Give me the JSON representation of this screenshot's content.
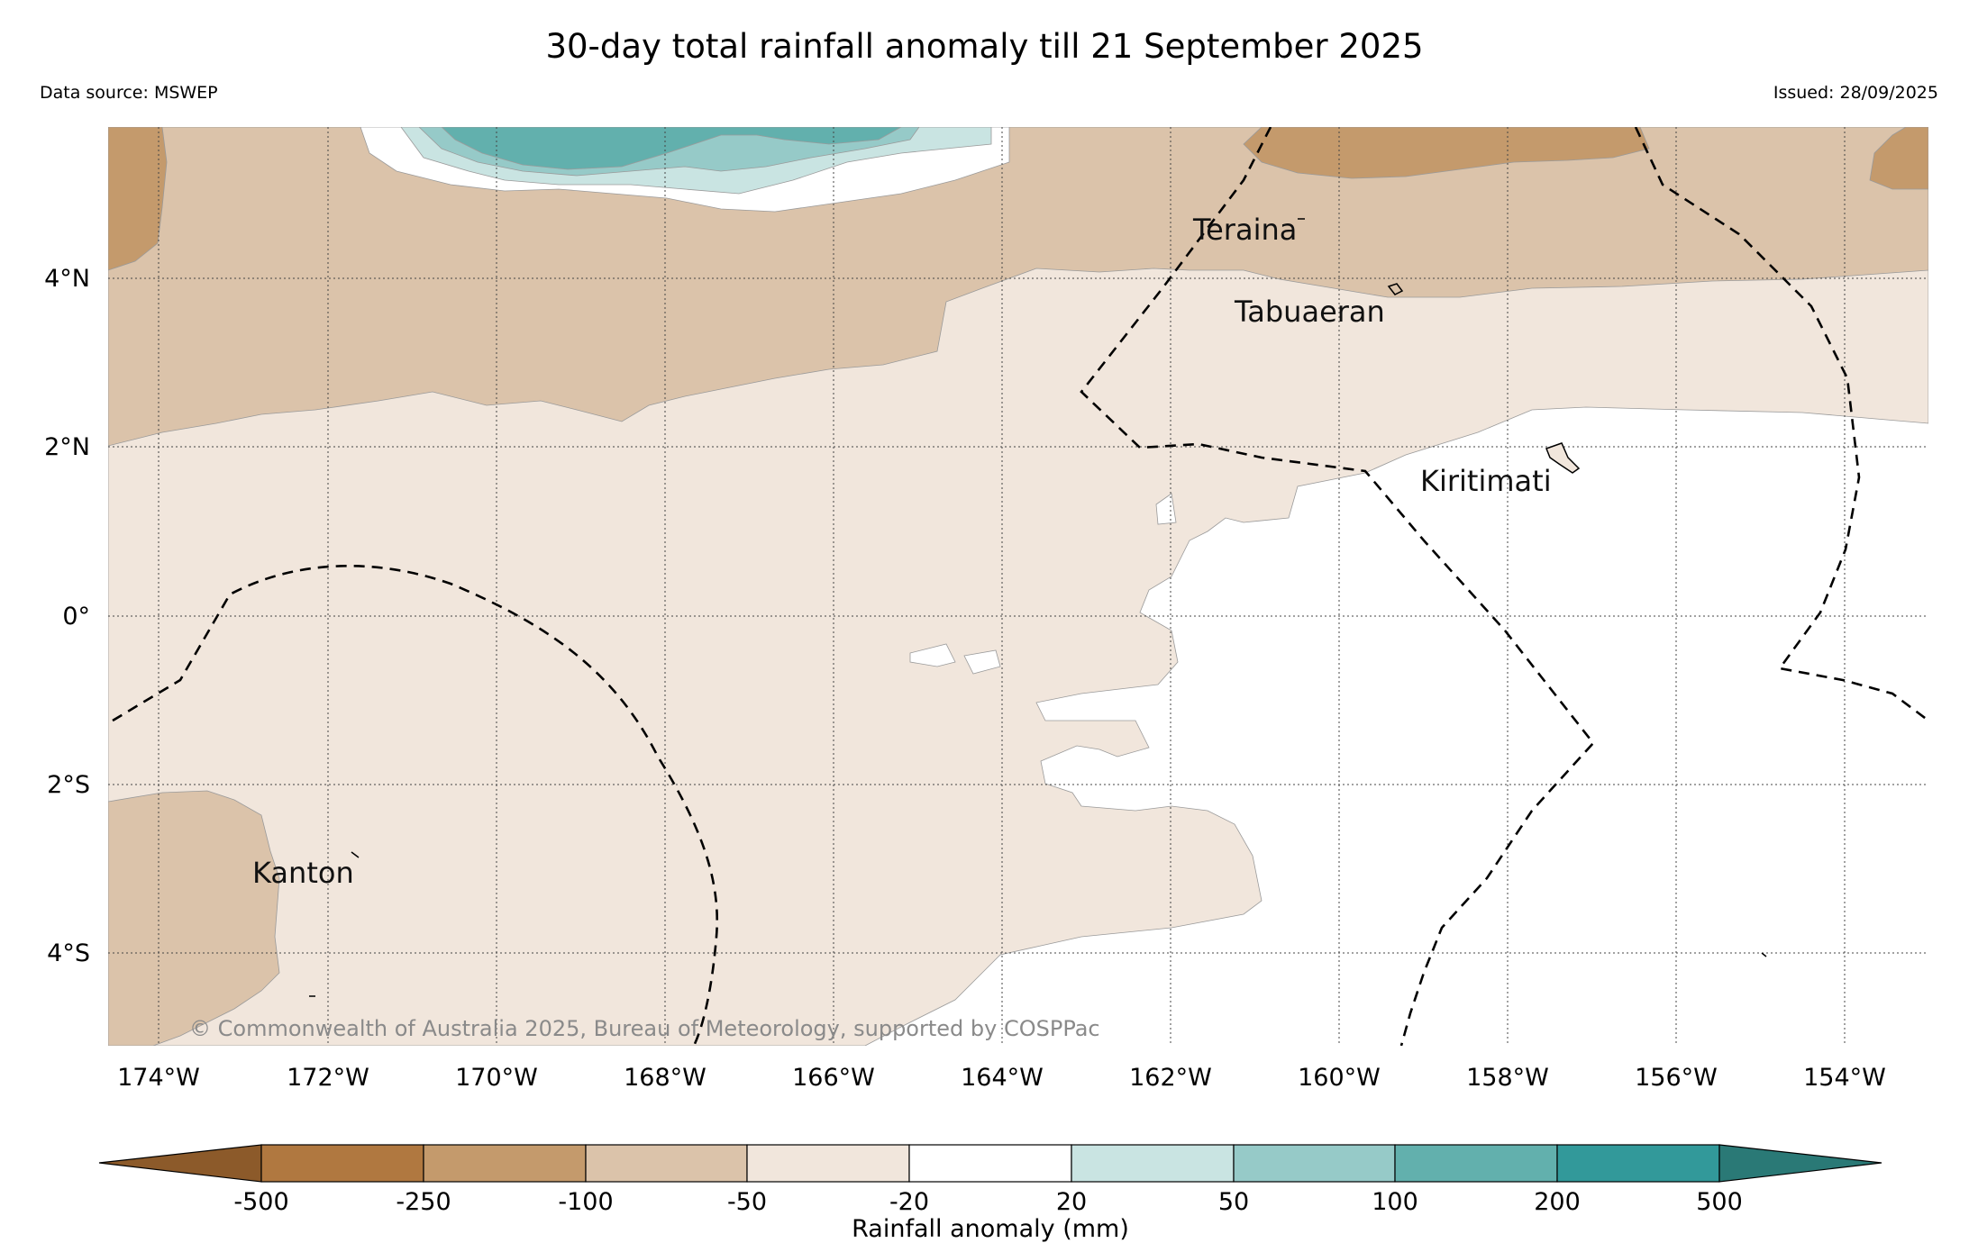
{
  "title": "30-day total rainfall anomaly till 21 September 2025",
  "data_source": "Data source: MSWEP",
  "issued": "Issued: 28/09/2025",
  "copyright": "© Commonwealth of Australia 2025, Bureau of Meteorology, supported by COSPPac",
  "map": {
    "lon_range": [
      -174.6,
      -152.9
    ],
    "lat_range": [
      -5.1,
      5.8
    ],
    "lon_ticks": [
      "174°W",
      "172°W",
      "170°W",
      "168°W",
      "166°W",
      "164°W",
      "162°W",
      "160°W",
      "158°W",
      "156°W",
      "154°W"
    ],
    "lat_ticks": [
      "4°N",
      "2°N",
      "0°",
      "2°S",
      "4°S"
    ],
    "gridlines": true,
    "places": [
      {
        "name": "Teraina",
        "lon": -161.4,
        "lat": 4.7
      },
      {
        "name": "Tabuaeran",
        "lon": -159.4,
        "lat": 3.9
      },
      {
        "name": "Kiritimati",
        "lon": -157.4,
        "lat": 1.9
      },
      {
        "name": "Kanton",
        "lon": -171.7,
        "lat": -2.8
      }
    ]
  },
  "colorbar": {
    "label": "Rainfall anomaly (mm)",
    "ticks": [
      "-500",
      "-250",
      "-100",
      "-50",
      "-20",
      "20",
      "50",
      "100",
      "200",
      "500"
    ],
    "colors": [
      "#8c5a2a",
      "#b07840",
      "#c49a6c",
      "#dbc3aa",
      "#f1e6dc",
      "#ffffff",
      "#c9e4e2",
      "#96cac8",
      "#62b0ad",
      "#32999a",
      "#2a7976"
    ],
    "extend": "both"
  }
}
